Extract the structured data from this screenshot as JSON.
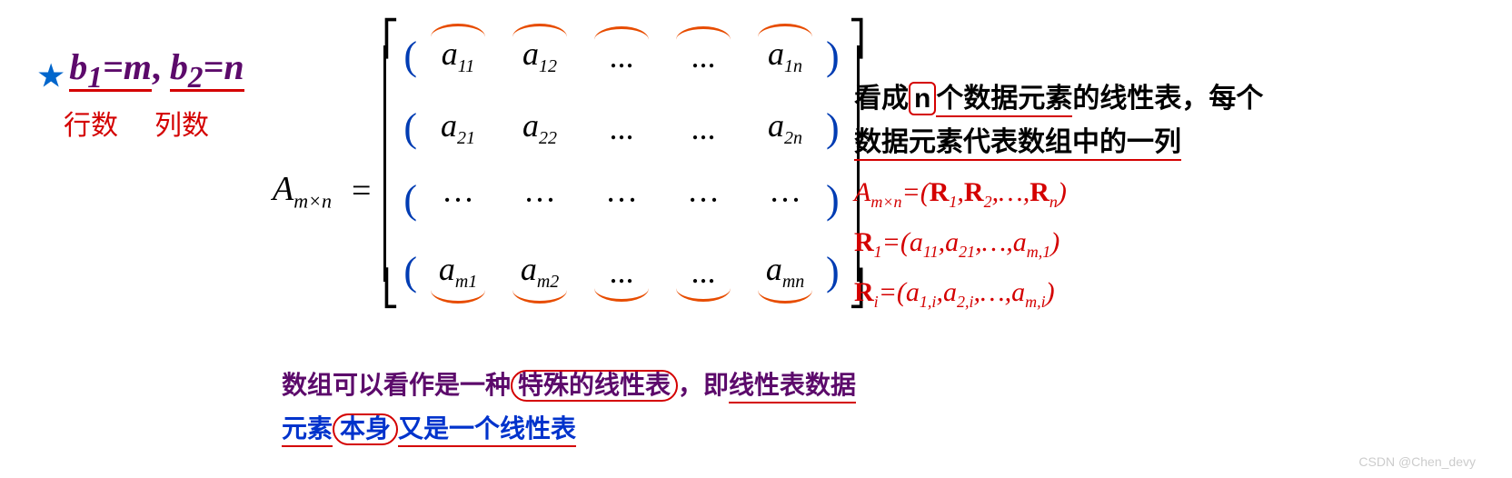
{
  "star": "★",
  "topLeft": {
    "b1_lhs": "b",
    "b1_sub": "1",
    "b1_eq": "=",
    "b1_rhs": "m",
    "comma": ",",
    "b2_lhs": "b",
    "b2_sub": "2",
    "b2_eq": "=",
    "b2_rhs": "n",
    "lbl_rows": "行数",
    "lbl_cols": "列数"
  },
  "matrix": {
    "A": "A",
    "A_sub": "m×n",
    "rows": [
      [
        "a₁₁",
        "a₁₂",
        "...",
        "...",
        "a₁ₙ"
      ],
      [
        "a₂₁",
        "a₂₂",
        "...",
        "...",
        "a₂ₙ"
      ],
      [
        "···",
        "···",
        "···",
        "···",
        "···"
      ],
      [
        "aₘ₁",
        "aₘ₂",
        "...",
        "...",
        "aₘₙ"
      ]
    ],
    "cellsHtml": {
      "r0c0": "a<sub>11</sub>",
      "r0c1": "a<sub>12</sub>",
      "r0c2": "...",
      "r0c3": "...",
      "r0c4": "a<sub>1n</sub>",
      "r1c0": "a<sub>21</sub>",
      "r1c1": "a<sub>22</sub>",
      "r1c2": "...",
      "r1c3": "...",
      "r1c4": "a<sub>2n</sub>",
      "r2c0": "···",
      "r2c1": "···",
      "r2c2": "···",
      "r2c3": "···",
      "r2c4": "···",
      "r3c0": "a<sub>m1</sub>",
      "r3c1": "a<sub>m2</sub>",
      "r3c2": "...",
      "r3c3": "...",
      "r3c4": "a<sub>mn</sub>"
    }
  },
  "right": {
    "cn_line1_pre": "看成",
    "cn_line1_n": "n",
    "cn_line1_mid": "个数据元素",
    "cn_line1_post": "的线性表，每个",
    "cn_line2": "数据元素代表数组中的一列",
    "eqA": "A<sub>m×n</sub>=(R<sub>1</sub>,R<sub>2</sub>,…,R<sub>n</sub>)",
    "eqR1": "R<sub>1</sub>=(<i>a</i><sub>11</sub>,<i>a</i><sub>21</sub>,…,<i>a</i><sub>m,1</sub>)",
    "eqRi": "R<sub>i</sub>=(<i>a</i><sub>1,i</sub>,<i>a</i><sub>2,i</sub>,…,<i>a</i><sub>m,i</sub>)"
  },
  "bottom": {
    "l1_pre": "数组可以看作是一种",
    "l1_box": "特殊的线性表",
    "l1_post": "，即",
    "l1_ul": "线性表数据",
    "l2_pre": "元素",
    "l2_circ": "本身",
    "l2_post": "又是一个线性表"
  },
  "watermark": "CSDN @Chen_devy",
  "colors": {
    "purple": "#5c0a6b",
    "red": "#d40000",
    "orange": "#e74c00",
    "blueParen": "#003cb3",
    "blueText": "#0033cc",
    "starBlue": "#0066cc"
  }
}
